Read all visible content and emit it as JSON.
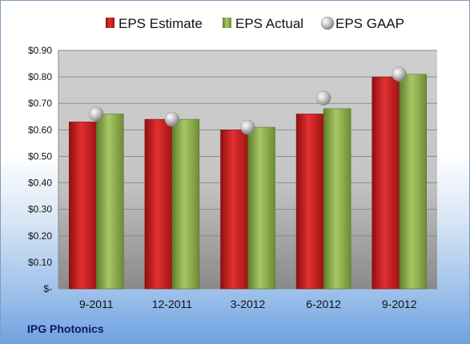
{
  "company": "IPG Photonics",
  "chart_data": {
    "type": "bar",
    "categories": [
      "9-2011",
      "12-2011",
      "3-2012",
      "6-2012",
      "9-2012"
    ],
    "series": [
      {
        "name": "EPS Estimate",
        "kind": "bar",
        "color": "#cc1f1f",
        "values": [
          0.63,
          0.64,
          0.6,
          0.66,
          0.8
        ]
      },
      {
        "name": "EPS Actual",
        "kind": "bar",
        "color": "#8fb04a",
        "values": [
          0.66,
          0.64,
          0.61,
          0.68,
          0.81
        ]
      },
      {
        "name": "EPS GAAP",
        "kind": "marker",
        "color": "#b8b8b8",
        "values": [
          0.66,
          0.64,
          0.61,
          0.72,
          0.81
        ]
      }
    ],
    "ylim": [
      0,
      0.9
    ],
    "yticks": [
      0.9,
      0.8,
      0.7,
      0.6,
      0.5,
      0.4,
      0.3,
      0.2,
      0.1,
      0
    ],
    "ytick_labels": [
      "$0.90",
      "$0.80",
      "$0.70",
      "$0.60",
      "$0.50",
      "$0.40",
      "$0.30",
      "$0.20",
      "$0.10",
      "$-"
    ],
    "legend_position": "top",
    "grid": true
  }
}
